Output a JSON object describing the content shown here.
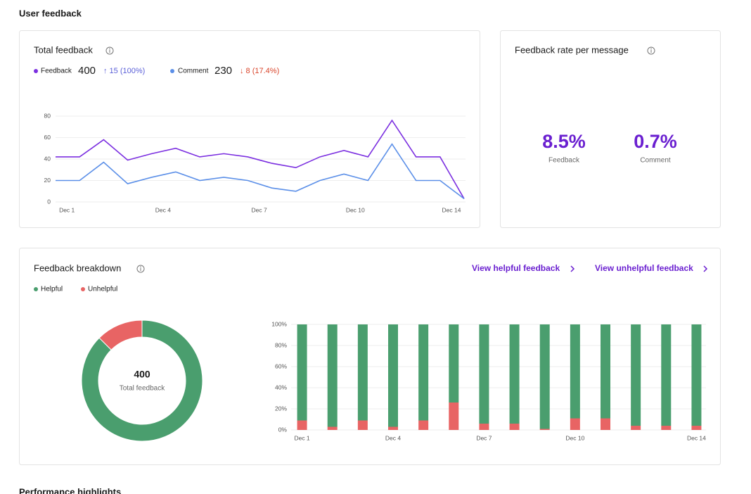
{
  "page_title": "User feedback",
  "total_feedback": {
    "title": "Total feedback",
    "feedback_total": "400",
    "feedback_change": "↑ 15 (100%)",
    "comment_total": "230",
    "comment_change": "↓ 8 (17.4%)"
  },
  "feedback_rate": {
    "title": "Feedback rate per message",
    "feedback_value": "8.5%",
    "feedback_label": "Feedback",
    "comment_value": "0.7%",
    "comment_label": "Comment"
  },
  "feedback_breakdown": {
    "title": "Feedback breakdown",
    "link_helpful": "View helpful feedback",
    "link_unhelpful": "View unhelpful feedback"
  },
  "next_section": "Performance highlights",
  "chart_data": [
    {
      "type": "line",
      "categories": [
        null,
        "Dec 1",
        null,
        null,
        null,
        "Dec 4",
        null,
        null,
        null,
        "Dec 7",
        null,
        null,
        null,
        "Dec 10",
        null,
        null,
        null,
        "Dec 14"
      ],
      "series": [
        {
          "name": "Feedback",
          "color": "#7b2fe0",
          "values": [
            42,
            42,
            58,
            39,
            45,
            50,
            42,
            45,
            42,
            36,
            32,
            42,
            48,
            42,
            76,
            42,
            42,
            3
          ]
        },
        {
          "name": "Comment",
          "color": "#5b8fe8",
          "values": [
            20,
            20,
            37,
            17,
            23,
            28,
            20,
            23,
            20,
            13,
            10,
            20,
            26,
            20,
            54,
            20,
            20,
            3
          ]
        }
      ],
      "ylim": [
        0,
        80
      ],
      "yticks": [
        0,
        20,
        40,
        60,
        80
      ],
      "grid": true
    },
    {
      "type": "pie",
      "donut": true,
      "values": [
        350,
        50
      ],
      "colors": [
        "#4a9e6e",
        "#e86464"
      ],
      "center_value": "400",
      "center_label": "Total feedback"
    },
    {
      "type": "bar",
      "stacked": true,
      "categories": [
        "Dec 1",
        null,
        null,
        "Dec 4",
        null,
        null,
        "Dec 7",
        null,
        null,
        "Dec 10",
        null,
        null,
        null,
        "Dec 14"
      ],
      "series": [
        {
          "name": "Helpful",
          "color": "#4a9e6e",
          "values": [
            91,
            97,
            91,
            97,
            91,
            74,
            94,
            94,
            99,
            89,
            89,
            96,
            96,
            96
          ]
        },
        {
          "name": "Unhelpful",
          "color": "#e86464",
          "values": [
            9,
            3,
            9,
            3,
            9,
            26,
            6,
            6,
            1,
            11,
            11,
            4,
            4,
            4
          ]
        }
      ],
      "ylim": [
        0,
        100
      ],
      "yticks": [
        {
          "value": 0,
          "label": "0%"
        },
        {
          "value": 20,
          "label": "20%"
        },
        {
          "value": 40,
          "label": "40%"
        },
        {
          "value": 60,
          "label": "60%"
        },
        {
          "value": 80,
          "label": "80%"
        },
        {
          "value": 100,
          "label": "100%"
        }
      ],
      "grid": true
    }
  ]
}
